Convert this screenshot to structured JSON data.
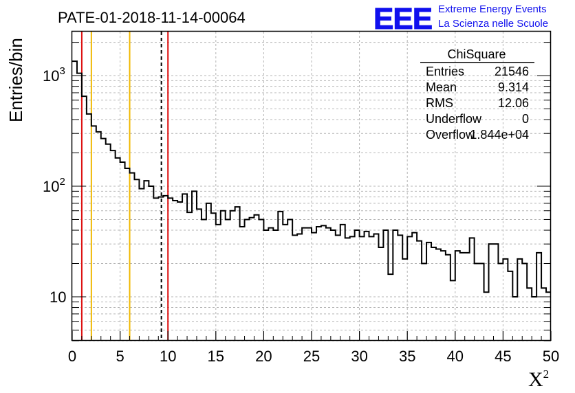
{
  "chart_data": {
    "type": "histogram",
    "title": "PATE-01-2018-11-14-00064",
    "xlabel": "X",
    "xlabel_superscript": "2",
    "ylabel": "Entries/bin",
    "xlim": [
      0,
      50
    ],
    "ylim": [
      4,
      2500
    ],
    "yscale": "log",
    "grid": true,
    "bin_width": 0.5,
    "x_ticks": [
      "0",
      "5",
      "10",
      "15",
      "20",
      "25",
      "30",
      "35",
      "40",
      "45",
      "50"
    ],
    "y_ticks": [
      {
        "value": 10,
        "base": "10",
        "exp": ""
      },
      {
        "value": 100,
        "base": "10",
        "exp": "2"
      },
      {
        "value": 1000,
        "base": "10",
        "exp": "3"
      }
    ],
    "values": [
      1350,
      1050,
      650,
      450,
      350,
      310,
      270,
      240,
      210,
      180,
      165,
      145,
      132,
      115,
      95,
      112,
      100,
      78,
      80,
      82,
      78,
      74,
      72,
      85,
      58,
      90,
      62,
      50,
      70,
      57,
      45,
      60,
      50,
      60,
      65,
      43,
      50,
      52,
      55,
      50,
      40,
      42,
      40,
      59,
      45,
      50,
      36,
      37,
      42,
      42,
      38,
      43,
      44,
      42,
      40,
      36,
      45,
      34,
      35,
      40,
      35,
      39,
      35,
      37,
      28,
      40,
      16,
      40,
      36,
      22,
      35,
      38,
      32,
      20,
      31,
      28,
      27,
      26,
      24,
      14,
      26,
      25,
      25,
      34,
      20,
      20,
      11,
      30,
      30,
      20,
      22,
      17,
      10,
      22,
      20,
      12,
      10,
      25,
      12,
      11
    ],
    "markers": [
      {
        "x": 1.0,
        "color": "#dd1111",
        "style": "solid"
      },
      {
        "x": 2.0,
        "color": "#f0b800",
        "style": "solid"
      },
      {
        "x": 6.0,
        "color": "#f0b800",
        "style": "solid"
      },
      {
        "x": 9.314,
        "color": "#000000",
        "style": "dashed"
      },
      {
        "x": 10.0,
        "color": "#dd1111",
        "style": "solid"
      }
    ],
    "stats": {
      "title": "ChiSquare",
      "rows": [
        {
          "label": "Entries",
          "value": "21546"
        },
        {
          "label": "Mean",
          "value": "9.314"
        },
        {
          "label": "RMS",
          "value": "12.06"
        },
        {
          "label": "Underflow",
          "value": "0"
        },
        {
          "label": "Overflow",
          "value": "1.844e+04"
        }
      ]
    }
  },
  "logo": {
    "mark": "EEE",
    "line1": "Extreme Energy Events",
    "line2": "La Scienza nelle Scuole"
  },
  "colors": {
    "logo": "#1010ee",
    "red_line": "#dd1111",
    "yellow_line": "#f0b800",
    "grid": "#b4b4b4"
  }
}
